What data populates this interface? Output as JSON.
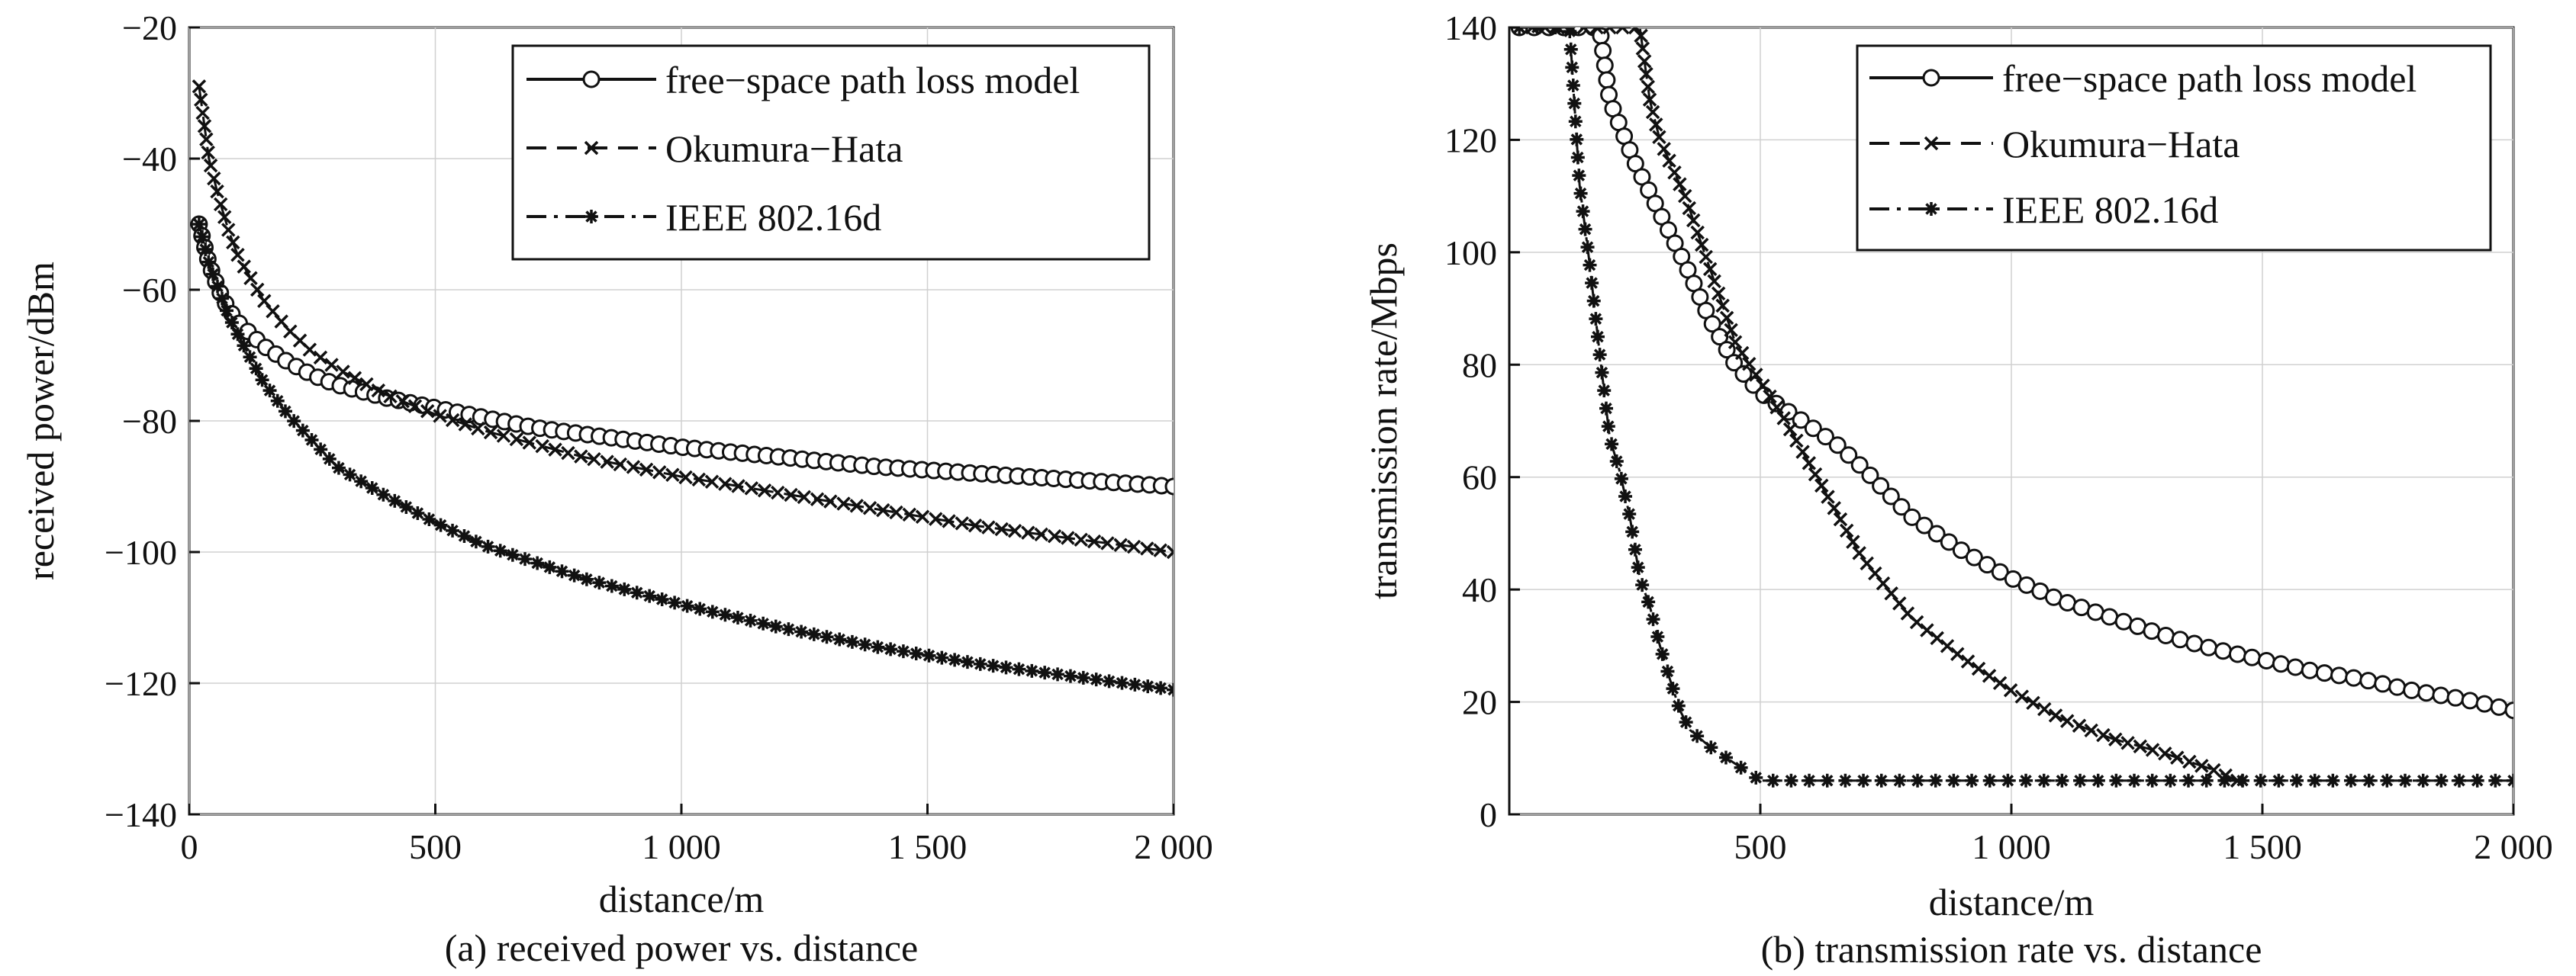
{
  "chart_data": [
    {
      "type": "line",
      "caption": "(a) received power vs. distance",
      "xlabel": "distance/m",
      "ylabel": "received power/dBm",
      "xlim": [
        0,
        2000
      ],
      "ylim": [
        -140,
        -20
      ],
      "xticks": [
        0,
        500,
        1000,
        1500,
        2000
      ],
      "xtick_labels": [
        "0",
        "500",
        "1 000",
        "1 500",
        "2 000"
      ],
      "yticks": [
        -140,
        -120,
        -100,
        -80,
        -60,
        -40,
        -20
      ],
      "ytick_labels": [
        "−140",
        "−120",
        "−100",
        "−80",
        "−60",
        "−40",
        "−20"
      ],
      "grid": true,
      "legend_position": "top-right",
      "legend": [
        "free−space path loss model",
        "Okumura−Hata",
        "IEEE 802.16d"
      ],
      "series": [
        {
          "name": "free−space path loss model",
          "marker": "circle",
          "dash": "solid",
          "x": [
            20,
            40,
            60,
            80,
            100,
            150,
            200,
            250,
            300,
            400,
            500,
            600,
            700,
            800,
            900,
            1000,
            1200,
            1400,
            1600,
            1800,
            2000
          ],
          "y": [
            -50,
            -56,
            -60,
            -63,
            -65,
            -68.5,
            -71,
            -73,
            -74.5,
            -76.5,
            -78,
            -79.5,
            -81,
            -82,
            -83,
            -84,
            -85.5,
            -87,
            -88,
            -89,
            -90
          ]
        },
        {
          "name": "Okumura−Hata",
          "marker": "x",
          "dash": "dashed",
          "x": [
            20,
            40,
            60,
            80,
            100,
            150,
            200,
            250,
            300,
            400,
            500,
            600,
            700,
            800,
            900,
            1000,
            1200,
            1400,
            1600,
            1800,
            2000
          ],
          "y": [
            -29,
            -40,
            -46,
            -51,
            -55,
            -61.5,
            -66,
            -69.5,
            -72,
            -76,
            -79,
            -81.5,
            -83.5,
            -85.5,
            -87,
            -88.5,
            -91,
            -93.5,
            -96,
            -98,
            -100
          ]
        },
        {
          "name": "IEEE 802.16d",
          "marker": "star",
          "dash": "dashdot",
          "x": [
            20,
            40,
            60,
            80,
            100,
            150,
            200,
            250,
            300,
            400,
            500,
            600,
            700,
            800,
            900,
            1000,
            1200,
            1400,
            1600,
            1800,
            2000
          ],
          "y": [
            -50,
            -56,
            -60,
            -64,
            -67,
            -74,
            -79,
            -83,
            -87,
            -91.5,
            -95.5,
            -99,
            -101.5,
            -104,
            -106,
            -108,
            -111.5,
            -114.5,
            -117,
            -119,
            -121
          ]
        }
      ]
    },
    {
      "type": "line",
      "caption": "(b) transmission rate vs. distance",
      "xlabel": "distance/m",
      "ylabel": "transmission rate/Mbps",
      "xlim": [
        0,
        2000
      ],
      "ylim": [
        0,
        140
      ],
      "xticks": [
        500,
        1000,
        1500,
        2000
      ],
      "xtick_labels": [
        "500",
        "1 000",
        "1 500",
        "2 000"
      ],
      "yticks": [
        0,
        20,
        40,
        60,
        80,
        100,
        120,
        140
      ],
      "ytick_labels": [
        "0",
        "20",
        "40",
        "60",
        "80",
        "100",
        "120",
        "140"
      ],
      "grid": true,
      "legend_position": "top-right",
      "legend": [
        "free−space path loss model",
        "Okumura−Hata",
        "IEEE 802.16d"
      ],
      "series": [
        {
          "name": "free−space path loss model",
          "marker": "circle",
          "dash": "solid",
          "x": [
            20,
            100,
            180,
            200,
            250,
            300,
            350,
            400,
            450,
            500,
            550,
            600,
            650,
            700,
            800,
            900,
            1000,
            1100,
            1200,
            1300,
            1400,
            1500,
            1600,
            1700,
            1800,
            1900,
            2000
          ],
          "y": [
            140,
            140,
            140,
            127,
            116,
            107,
            98,
            88,
            80,
            75,
            72,
            69,
            66,
            62,
            53,
            47,
            42,
            38,
            35,
            32,
            29.5,
            27.5,
            25.5,
            24,
            22,
            20.5,
            18.5
          ]
        },
        {
          "name": "Okumura−Hata",
          "marker": "x",
          "dash": "dashed",
          "x": [
            20,
            100,
            200,
            260,
            280,
            300,
            350,
            400,
            450,
            500,
            550,
            600,
            700,
            800,
            900,
            1000,
            1100,
            1200,
            1300,
            1400,
            1450
          ],
          "y": [
            140,
            140,
            140,
            140,
            127,
            120,
            110,
            97,
            84,
            77,
            70,
            62,
            46,
            35,
            28,
            22,
            17,
            13.5,
            11,
            8,
            6
          ]
        },
        {
          "name": "IEEE 802.16d",
          "marker": "star",
          "dash": "dashdot",
          "x": [
            20,
            60,
            100,
            120,
            140,
            160,
            180,
            200,
            220,
            240,
            260,
            280,
            300,
            320,
            340,
            360,
            400,
            450,
            500,
            600,
            800,
            1000,
            1200,
            1400,
            1600,
            1800,
            2000
          ],
          "y": [
            140,
            140,
            140,
            140,
            112,
            98,
            82,
            67,
            61,
            53,
            42,
            37,
            30,
            24,
            18.5,
            15,
            12,
            9,
            6,
            6,
            6,
            6,
            6,
            6,
            6,
            6,
            6
          ]
        }
      ]
    }
  ]
}
